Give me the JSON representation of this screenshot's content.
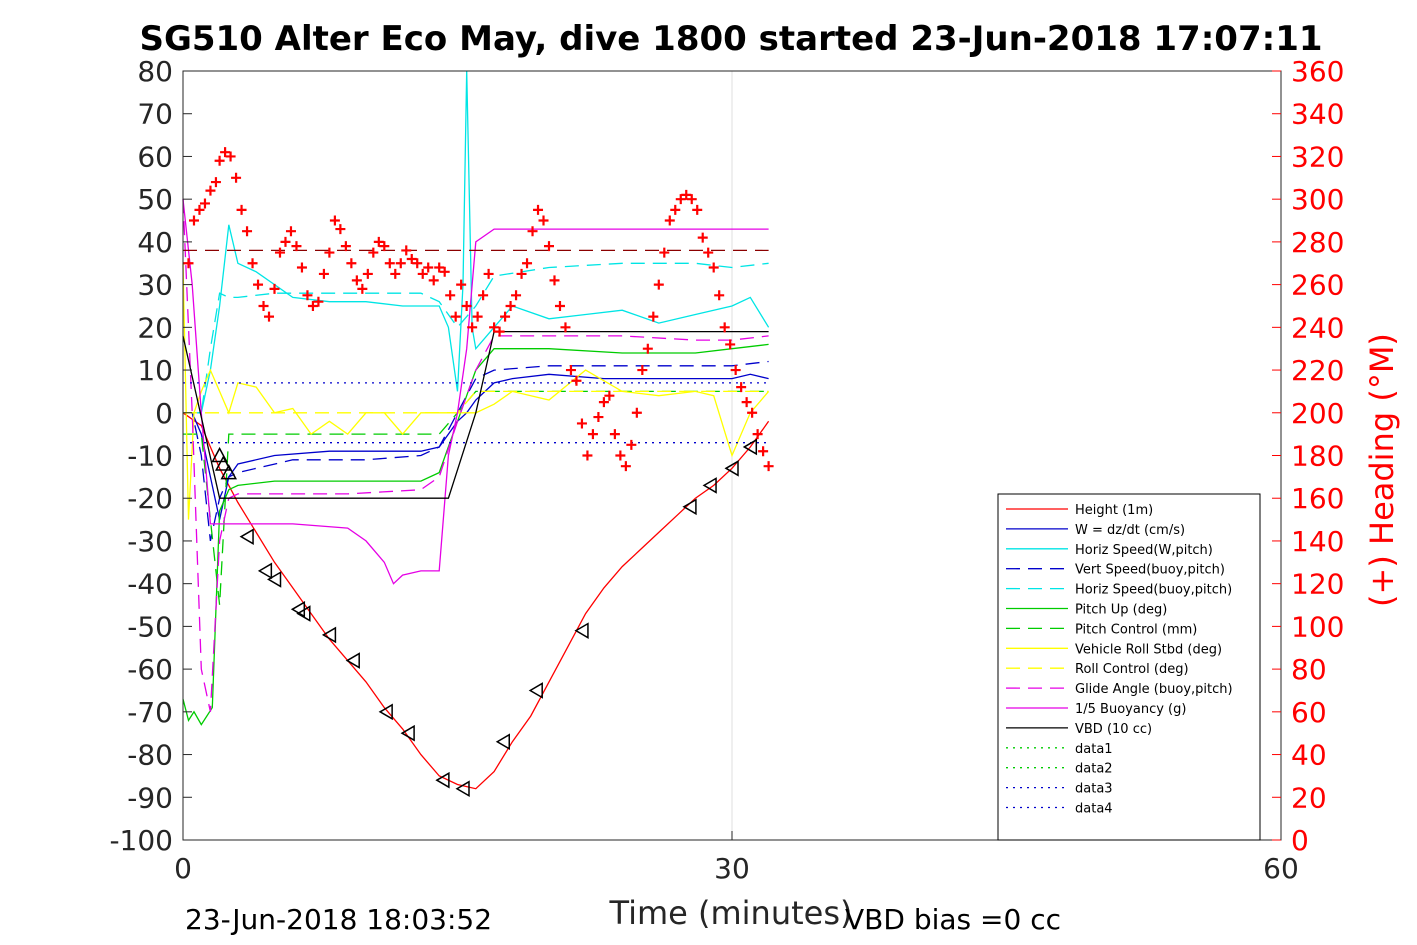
{
  "chart_data": {
    "type": "line",
    "title": "SG510 Alter Eco May, dive 1800 started 23-Jun-2018 17:07:11",
    "xlabel": "Time (minutes)",
    "ylabel": "",
    "y2label": "(+) Heading (°M)",
    "xlim": [
      0,
      60
    ],
    "ylim": [
      -100,
      80
    ],
    "y2lim": [
      0,
      360
    ],
    "x_ticks": [
      "0",
      "30",
      "60"
    ],
    "y_ticks": [
      "80",
      "70",
      "60",
      "50",
      "40",
      "30",
      "20",
      "10",
      "0",
      "-10",
      "-20",
      "-30",
      "-40",
      "-50",
      "-60",
      "-70",
      "-80",
      "-90",
      "-100"
    ],
    "y2_ticks": [
      "360",
      "340",
      "320",
      "300",
      "280",
      "260",
      "240",
      "220",
      "200",
      "180",
      "160",
      "140",
      "120",
      "100",
      "80",
      "60",
      "40",
      "20",
      "0"
    ],
    "grid": "x-only",
    "legend_position": "right",
    "footer_left": "23-Jun-2018 18:03:52",
    "footer_right": "VBD bias =0 cc",
    "series": [
      {
        "name": "Height (1m)",
        "color": "#ff0000",
        "style": "solid",
        "x": [
          0,
          1,
          1.5,
          2,
          2.5,
          3,
          4,
          5,
          6,
          7,
          8,
          9,
          10,
          11,
          12,
          13,
          14,
          15,
          16,
          17,
          18,
          19,
          20,
          21,
          22,
          23,
          24,
          25,
          26,
          27,
          28,
          29,
          30,
          31,
          32
        ],
        "y": [
          0,
          -3,
          -8,
          -13,
          -17,
          -21,
          -28,
          -35,
          -41,
          -47,
          -53,
          -58,
          -63,
          -69,
          -74,
          -80,
          -85,
          -87,
          -88,
          -84,
          -77,
          -71,
          -63,
          -55,
          -47,
          -41,
          -36,
          -32,
          -28,
          -24,
          -20,
          -17,
          -13,
          -8,
          -2
        ]
      },
      {
        "name": "W = dz/dt (cm/s)",
        "color": "#0000cc",
        "style": "solid",
        "x": [
          0,
          0.5,
          1,
          1.5,
          2,
          2.5,
          3,
          5,
          8,
          11,
          13,
          14,
          14.5,
          15,
          15.5,
          16,
          17,
          18,
          20,
          23,
          26,
          29,
          30,
          31,
          32
        ],
        "y": [
          0,
          0,
          -5,
          -15,
          -25,
          -15,
          -12,
          -10,
          -9,
          -9,
          -9,
          -8,
          -5,
          -2,
          0,
          3,
          7,
          8,
          9,
          8,
          8,
          8,
          8,
          9,
          8
        ]
      },
      {
        "name": "Horiz Speed(W,pitch)",
        "color": "#00e5e5",
        "style": "solid",
        "x": [
          0,
          1,
          1.5,
          2,
          2.5,
          3,
          4,
          6,
          8,
          10,
          12,
          13,
          14,
          14.5,
          15,
          15.3,
          15.5,
          15.8,
          16,
          17,
          18,
          20,
          22,
          24,
          26,
          28,
          30,
          31,
          32
        ],
        "y": [
          0,
          0,
          10,
          25,
          44,
          35,
          33,
          27,
          26,
          26,
          25,
          25,
          25,
          20,
          5,
          30,
          80,
          20,
          15,
          20,
          25,
          22,
          23,
          24,
          21,
          23,
          25,
          27,
          20
        ]
      },
      {
        "name": "Vert Speed(buoy,pitch)",
        "color": "#0000cc",
        "style": "dashed",
        "x": [
          0,
          0.5,
          1,
          1.5,
          2,
          2.5,
          3,
          6,
          10,
          13,
          14,
          15,
          16,
          17,
          20,
          24,
          28,
          30,
          32
        ],
        "y": [
          0,
          0,
          -10,
          -30,
          -20,
          -15,
          -14,
          -11,
          -11,
          -10,
          -8,
          0,
          8,
          10,
          11,
          11,
          11,
          11,
          12
        ]
      },
      {
        "name": "Horiz Speed(buoy,pitch)",
        "color": "#00e5e5",
        "style": "dashed",
        "x": [
          0,
          1,
          1.5,
          2,
          2.5,
          3,
          5,
          8,
          11,
          13,
          14,
          15,
          16,
          17,
          20,
          24,
          28,
          30,
          32
        ],
        "y": [
          0,
          0,
          15,
          28,
          27,
          27,
          28,
          28,
          28,
          28,
          26,
          20,
          25,
          32,
          34,
          35,
          35,
          34,
          35
        ]
      },
      {
        "name": "Pitch Up (deg)",
        "color": "#00cc00",
        "style": "solid",
        "x": [
          0,
          0.3,
          0.6,
          1,
          1.3,
          1.6,
          2,
          2.5,
          3,
          5,
          8,
          11,
          13,
          14,
          15,
          16,
          17,
          20,
          24,
          28,
          30,
          32
        ],
        "y": [
          -67,
          -72,
          -70,
          -73,
          -71,
          -69,
          -23,
          -18,
          -17,
          -16,
          -16,
          -16,
          -16,
          -14,
          -2,
          10,
          15,
          15,
          14,
          14,
          15,
          16
        ]
      },
      {
        "name": "Pitch Control (mm)",
        "color": "#00cc00",
        "style": "dashed",
        "x": [
          0,
          1,
          1.5,
          2,
          2.5,
          3,
          8,
          13,
          14,
          15,
          16,
          17,
          22,
          28,
          32
        ],
        "y": [
          -5,
          -5,
          -25,
          -45,
          -5,
          -5,
          -5,
          -5,
          -5,
          0,
          5,
          5,
          5,
          5,
          5
        ]
      },
      {
        "name": "Vehicle Roll Stbd (deg)",
        "color": "#ffff00",
        "style": "solid",
        "x": [
          0,
          0.3,
          0.6,
          1,
          1.5,
          2,
          2.5,
          3,
          4,
          5,
          6,
          7,
          8,
          9,
          10,
          11,
          12,
          13,
          14,
          15,
          16,
          17,
          18,
          20,
          22,
          24,
          26,
          28,
          29,
          30,
          31,
          32
        ],
        "y": [
          35,
          -25,
          0,
          5,
          10,
          5,
          0,
          7,
          6,
          0,
          1,
          -5,
          -2,
          -5,
          0,
          0,
          -5,
          0,
          0,
          0,
          0,
          2,
          5,
          3,
          10,
          5,
          4,
          5,
          4,
          -10,
          0,
          5
        ]
      },
      {
        "name": "Roll Control (deg)",
        "color": "#ffff00",
        "style": "dashed",
        "x": [
          0,
          1,
          2,
          3,
          8,
          13,
          14,
          15,
          16,
          17,
          22,
          28,
          32
        ],
        "y": [
          0,
          0,
          0,
          0,
          0,
          0,
          0,
          0,
          5,
          5,
          5,
          5,
          5
        ]
      },
      {
        "name": "Glide Angle (buoy,pitch)",
        "color": "#e500e5",
        "style": "dashed",
        "x": [
          0,
          0.5,
          1,
          1.5,
          2,
          2.5,
          3,
          6,
          9,
          13,
          14,
          15,
          16,
          17,
          20,
          24,
          28,
          30,
          32
        ],
        "y": [
          50,
          0,
          -60,
          -70,
          -30,
          -20,
          -19,
          -19,
          -19,
          -18,
          -15,
          -2,
          10,
          18,
          18,
          18,
          17,
          17,
          18
        ]
      },
      {
        "name": "1/5 Buoyancy (g)",
        "color": "#e500e5",
        "style": "solid",
        "x": [
          0,
          0.5,
          1,
          1.5,
          2,
          2.5,
          3,
          6,
          9,
          10,
          11,
          11.5,
          12,
          13,
          14,
          14.5,
          15,
          15.5,
          16,
          17,
          18,
          24,
          28,
          30,
          32
        ],
        "y": [
          50,
          30,
          0,
          -26,
          -26,
          -26,
          -26,
          -26,
          -27,
          -30,
          -35,
          -40,
          -38,
          -37,
          -37,
          -10,
          0,
          15,
          40,
          43,
          43,
          43,
          43,
          43,
          43
        ]
      },
      {
        "name": "VBD (10 cc)",
        "color": "#000000",
        "style": "solid",
        "x": [
          0,
          2,
          2.5,
          10,
          14,
          14.5,
          16,
          17,
          20,
          28,
          32
        ],
        "y": [
          18,
          -20,
          -20,
          -20,
          -20,
          -20,
          0,
          19,
          19,
          19,
          19
        ]
      },
      {
        "name": "data1",
        "color": "#00cc00",
        "style": "dotted",
        "x": [],
        "y": []
      },
      {
        "name": "data2",
        "color": "#00cc00",
        "style": "dotted",
        "x": [],
        "y": []
      },
      {
        "name": "data3",
        "color": "#0000cc",
        "style": "dotted",
        "x": [
          0,
          32
        ],
        "y": [
          7,
          7
        ]
      },
      {
        "name": "data4",
        "color": "#0000cc",
        "style": "dotted",
        "x": [
          0,
          32
        ],
        "y": [
          -7,
          -7
        ]
      }
    ],
    "reference_lines": [
      {
        "color": "#8b0000",
        "style": "dashed",
        "x": [
          0,
          32
        ],
        "y": [
          38,
          38
        ]
      }
    ],
    "heading": {
      "color": "#ff0000",
      "marker": "+",
      "axis": "right",
      "x": [
        0.3,
        0.6,
        0.9,
        1.2,
        1.5,
        1.8,
        2,
        2.3,
        2.6,
        2.9,
        3.2,
        3.5,
        3.8,
        4.1,
        4.4,
        4.7,
        5,
        5.3,
        5.6,
        5.9,
        6.2,
        6.5,
        6.8,
        7.1,
        7.4,
        7.7,
        8,
        8.3,
        8.6,
        8.9,
        9.2,
        9.5,
        9.8,
        10.1,
        10.4,
        10.7,
        11,
        11.3,
        11.6,
        11.9,
        12.2,
        12.5,
        12.8,
        13.1,
        13.4,
        13.7,
        14,
        14.3,
        14.6,
        14.9,
        15.2,
        15.5,
        15.8,
        16.1,
        16.4,
        16.7,
        17,
        17.3,
        17.6,
        17.9,
        18.2,
        18.5,
        18.8,
        19.1,
        19.4,
        19.7,
        20,
        20.3,
        20.6,
        20.9,
        21.2,
        21.5,
        21.8,
        22.1,
        22.4,
        22.7,
        23,
        23.3,
        23.6,
        23.9,
        24.2,
        24.5,
        24.8,
        25.1,
        25.4,
        25.7,
        26,
        26.3,
        26.6,
        26.9,
        27.2,
        27.5,
        27.8,
        28.1,
        28.4,
        28.7,
        29,
        29.3,
        29.6,
        29.9,
        30.2,
        30.5,
        30.8,
        31.1,
        31.4,
        31.7,
        32
      ],
      "y": [
        270,
        290,
        295,
        298,
        304,
        308,
        318,
        322,
        320,
        310,
        295,
        285,
        270,
        260,
        250,
        245,
        258,
        275,
        280,
        285,
        278,
        268,
        255,
        250,
        252,
        265,
        275,
        290,
        286,
        278,
        270,
        262,
        258,
        265,
        275,
        280,
        278,
        270,
        265,
        270,
        276,
        272,
        270,
        265,
        268,
        262,
        268,
        266,
        255,
        245,
        260,
        250,
        240,
        245,
        255,
        265,
        240,
        238,
        245,
        250,
        255,
        265,
        270,
        285,
        295,
        290,
        278,
        262,
        250,
        240,
        220,
        215,
        195,
        180,
        190,
        198,
        205,
        208,
        190,
        180,
        175,
        185,
        200,
        220,
        230,
        245,
        260,
        275,
        290,
        295,
        300,
        302,
        300,
        295,
        282,
        275,
        268,
        255,
        240,
        232,
        220,
        212,
        205,
        200,
        190,
        182,
        175
      ]
    },
    "markers": {
      "up_triangles": [
        [
          2,
          -10
        ],
        [
          2.2,
          -12
        ],
        [
          2.5,
          -14
        ]
      ],
      "left_triangles": [
        [
          3.5,
          -29
        ],
        [
          4.5,
          -37
        ],
        [
          5,
          -39
        ],
        [
          6.3,
          -46
        ],
        [
          6.6,
          -47
        ],
        [
          8,
          -52
        ],
        [
          9.3,
          -58
        ],
        [
          11.1,
          -70
        ],
        [
          12.3,
          -75
        ],
        [
          14.2,
          -86
        ],
        [
          15.3,
          -88
        ],
        [
          17.5,
          -77
        ],
        [
          19.3,
          -65
        ],
        [
          21.8,
          -51
        ],
        [
          27.7,
          -22
        ],
        [
          28.8,
          -17
        ],
        [
          30,
          -13
        ],
        [
          31,
          -8
        ]
      ]
    }
  }
}
